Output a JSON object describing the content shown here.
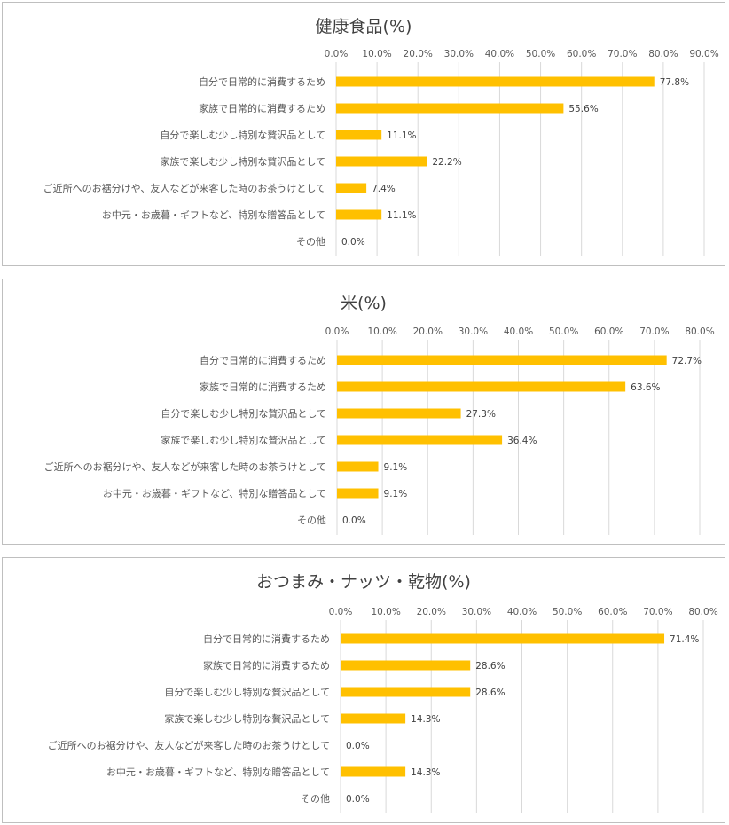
{
  "accent_color": "#ffc000",
  "gridline_color": "#d9d9d9",
  "chart_data": [
    {
      "type": "bar",
      "orientation": "horizontal",
      "title": "健康食品(%)",
      "categories": [
        "自分で日常的に消費するため",
        "家族で日常的に消費するため",
        "自分で楽しむ少し特別な贅沢品として",
        "家族で楽しむ少し特別な贅沢品として",
        "ご近所へのお裾分けや、友人などが来客した時のお茶うけとして",
        "お中元・お歳暮・ギフトなど、特別な贈答品として",
        "その他"
      ],
      "values": [
        77.8,
        55.6,
        11.1,
        22.2,
        7.4,
        11.1,
        0.0
      ],
      "value_labels": [
        "77.8%",
        "55.6%",
        "11.1%",
        "22.2%",
        "7.4%",
        "11.1%",
        "0.0%"
      ],
      "xlim": [
        0,
        90
      ],
      "ticks": [
        "0.0%",
        "10.0%",
        "20.0%",
        "30.0%",
        "40.0%",
        "50.0%",
        "60.0%",
        "70.0%",
        "80.0%",
        "90.0%"
      ],
      "axis_position": "top",
      "grid": true,
      "legend": "none"
    },
    {
      "type": "bar",
      "orientation": "horizontal",
      "title": "米(%)",
      "categories": [
        "自分で日常的に消費するため",
        "家族で日常的に消費するため",
        "自分で楽しむ少し特別な贅沢品として",
        "家族で楽しむ少し特別な贅沢品として",
        "ご近所へのお裾分けや、友人などが来客した時のお茶うけとして",
        "お中元・お歳暮・ギフトなど、特別な贈答品として",
        "その他"
      ],
      "values": [
        72.7,
        63.6,
        27.3,
        36.4,
        9.1,
        9.1,
        0.0
      ],
      "value_labels": [
        "72.7%",
        "63.6%",
        "27.3%",
        "36.4%",
        "9.1%",
        "9.1%",
        "0.0%"
      ],
      "xlim": [
        0,
        80
      ],
      "ticks": [
        "0.0%",
        "10.0%",
        "20.0%",
        "30.0%",
        "40.0%",
        "50.0%",
        "60.0%",
        "70.0%",
        "80.0%"
      ],
      "axis_position": "top",
      "grid": true,
      "legend": "none"
    },
    {
      "type": "bar",
      "orientation": "horizontal",
      "title": "おつまみ・ナッツ・乾物(%)",
      "categories": [
        "自分で日常的に消費するため",
        "家族で日常的に消費するため",
        "自分で楽しむ少し特別な贅沢品として",
        "家族で楽しむ少し特別な贅沢品として",
        "ご近所へのお裾分けや、友人などが来客した時のお茶うけとして",
        "お中元・お歳暮・ギフトなど、特別な贈答品として",
        "その他"
      ],
      "values": [
        71.4,
        28.6,
        28.6,
        14.3,
        0.0,
        14.3,
        0.0
      ],
      "value_labels": [
        "71.4%",
        "28.6%",
        "28.6%",
        "14.3%",
        "0.0%",
        "14.3%",
        "0.0%"
      ],
      "xlim": [
        0,
        80
      ],
      "ticks": [
        "0.0%",
        "10.0%",
        "20.0%",
        "30.0%",
        "40.0%",
        "50.0%",
        "60.0%",
        "70.0%",
        "80.0%"
      ],
      "axis_position": "top",
      "grid": true,
      "legend": "none"
    }
  ]
}
